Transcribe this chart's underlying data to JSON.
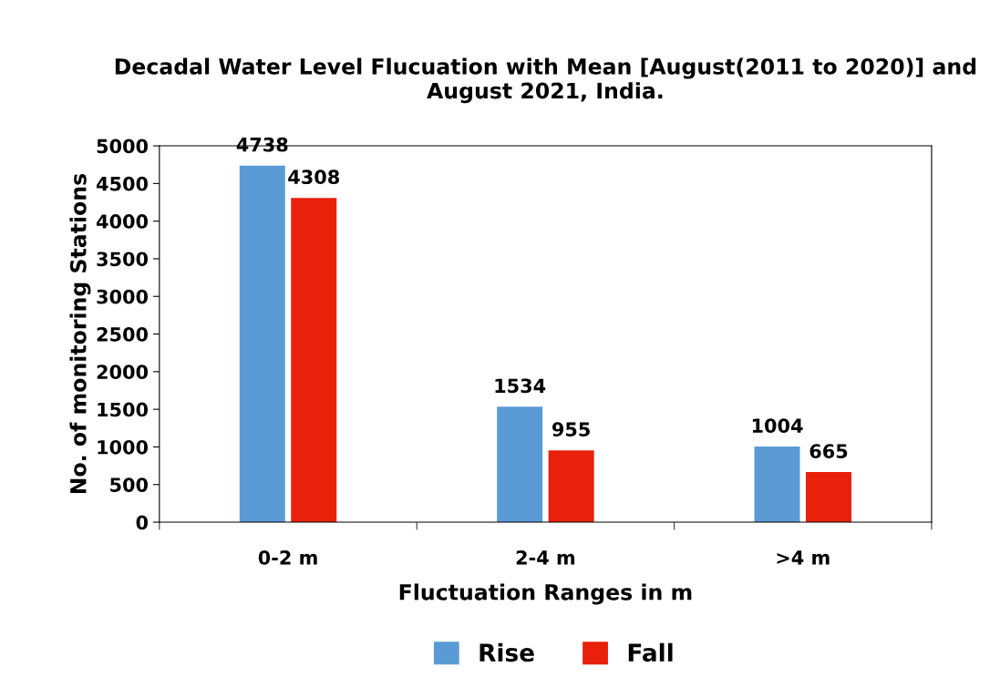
{
  "chart_data": {
    "type": "bar",
    "title": "Decadal Water Level Flucuation with Mean [August(2011 to 2020)] and August 2021, India.",
    "xlabel": "Fluctuation Ranges in m",
    "ylabel": "No. of monitoring Stations",
    "categories": [
      "0-2 m",
      "2-4 m",
      ">4 m"
    ],
    "series": [
      {
        "name": "Rise",
        "color": "#5b9bd5",
        "values": [
          4738,
          1534,
          1004
        ]
      },
      {
        "name": "Fall",
        "color": "#e8200c",
        "values": [
          4308,
          955,
          665
        ]
      }
    ],
    "ylim": [
      0,
      5000
    ],
    "yticks": [
      0,
      500,
      1000,
      1500,
      2000,
      2500,
      3000,
      3500,
      4000,
      4500,
      5000
    ],
    "grid": false,
    "legend": "bottom",
    "data_labels": true
  }
}
